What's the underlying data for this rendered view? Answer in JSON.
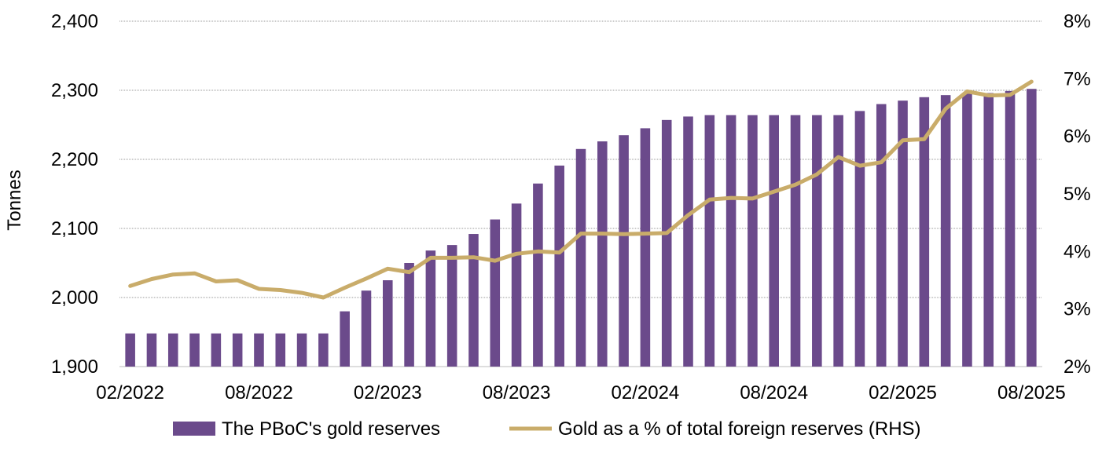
{
  "chart_data": {
    "type": "bar",
    "title": "",
    "ylabel": "Tonnes",
    "ylim": [
      1900,
      2400
    ],
    "y_ticks": [
      "1,900",
      "2,000",
      "2,100",
      "2,200",
      "2,300",
      "2,400"
    ],
    "y_tick_values": [
      1900,
      2000,
      2100,
      2200,
      2300,
      2400
    ],
    "y2lim": [
      2,
      8
    ],
    "y2_ticks": [
      "2%",
      "3%",
      "4%",
      "5%",
      "6%",
      "7%",
      "8%"
    ],
    "y2_tick_values": [
      2,
      3,
      4,
      5,
      6,
      7,
      8
    ],
    "x_tick_labels": [
      "02/2022",
      "08/2022",
      "02/2023",
      "08/2023",
      "02/2024",
      "08/2024",
      "02/2025",
      "08/2025"
    ],
    "x_tick_indices": [
      0,
      6,
      12,
      18,
      24,
      30,
      36,
      42
    ],
    "categories": [
      "02/2022",
      "03/2022",
      "04/2022",
      "05/2022",
      "06/2022",
      "07/2022",
      "08/2022",
      "09/2022",
      "10/2022",
      "11/2022",
      "12/2022",
      "01/2023",
      "02/2023",
      "03/2023",
      "04/2023",
      "05/2023",
      "06/2023",
      "07/2023",
      "08/2023",
      "09/2023",
      "10/2023",
      "11/2023",
      "12/2023",
      "01/2024",
      "02/2024",
      "03/2024",
      "04/2024",
      "05/2024",
      "06/2024",
      "07/2024",
      "08/2024",
      "09/2024",
      "10/2024",
      "11/2024",
      "12/2024",
      "01/2025",
      "02/2025",
      "03/2025",
      "04/2025",
      "05/2025",
      "06/2025",
      "07/2025",
      "08/2025"
    ],
    "series": [
      {
        "name": "The PBoC's gold reserves",
        "type": "bar",
        "axis": "left",
        "color": "#6b4a8b",
        "values": [
          1948,
          1948,
          1948,
          1948,
          1948,
          1948,
          1948,
          1948,
          1948,
          1948,
          1980,
          2010,
          2025,
          2050,
          2068,
          2076,
          2092,
          2113,
          2136,
          2165,
          2191,
          2215,
          2226,
          2235,
          2245,
          2257,
          2262,
          2264,
          2264,
          2264,
          2264,
          2264,
          2264,
          2264,
          2270,
          2280,
          2285,
          2290,
          2293,
          2295,
          2296,
          2299,
          2302
        ]
      },
      {
        "name": "Gold as a % of total foreign reserves (RHS)",
        "type": "line",
        "axis": "right",
        "color": "#c9ac6a",
        "values": [
          3.4,
          3.52,
          3.6,
          3.62,
          3.48,
          3.5,
          3.35,
          3.33,
          3.28,
          3.2,
          3.37,
          3.53,
          3.7,
          3.64,
          3.89,
          3.89,
          3.9,
          3.84,
          3.96,
          4.0,
          3.98,
          4.31,
          4.31,
          4.3,
          4.31,
          4.32,
          4.63,
          4.9,
          4.93,
          4.92,
          5.04,
          5.16,
          5.34,
          5.64,
          5.49,
          5.55,
          5.93,
          5.95,
          6.48,
          6.78,
          6.71,
          6.72,
          6.95
        ]
      }
    ],
    "legend_position": "bottom-center",
    "grid": true
  }
}
